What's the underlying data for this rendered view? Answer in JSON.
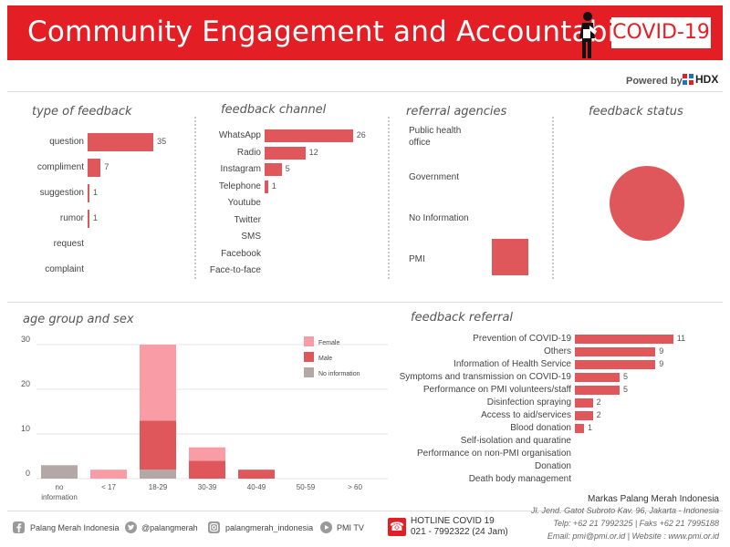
{
  "header": {
    "title": "Community Engagement and Accountability",
    "badge": "COVID-19",
    "powered_by": "Powered by",
    "hdx_label": "HDX"
  },
  "panels": {
    "type_of_feedback": "type of feedback",
    "feedback_channel": "feedback channel",
    "referral_agencies": "referral agencies",
    "feedback_status": "feedback status",
    "age_group_and_sex": "age group and sex",
    "feedback_referral": "feedback referral"
  },
  "referral_agencies": {
    "items": [
      "Public health office",
      "Government",
      "No Information",
      "PMI"
    ]
  },
  "colors": {
    "brand_red": "#e31e24",
    "bar_red": "#df575a",
    "female_pink": "#fa9ca6",
    "male_red": "#df575a",
    "no_info_gray": "#b3a8a6"
  },
  "chart_data": [
    {
      "type": "bar",
      "orientation": "horizontal",
      "categories": [
        "question",
        "compliment",
        "suggestion",
        "rumor",
        "request",
        "complaint"
      ],
      "values": [
        35,
        7,
        1,
        1,
        null,
        null
      ],
      "value_labels": [
        "35",
        "7",
        "1",
        "1",
        "",
        ""
      ]
    },
    {
      "type": "bar",
      "orientation": "horizontal",
      "categories": [
        "WhatsApp",
        "Radio",
        "Instagram",
        "Telephone",
        "Youtube",
        "Twitter",
        "SMS",
        "Facebook",
        "Face-to-face"
      ],
      "values": [
        26,
        12,
        5,
        1,
        null,
        null,
        null,
        null,
        null
      ],
      "value_labels": [
        "26",
        "12",
        "5",
        "1",
        "",
        "",
        "",
        "",
        ""
      ]
    },
    {
      "type": "pie",
      "slices": [
        {
          "value": 1
        }
      ]
    },
    {
      "type": "bar",
      "orientation": "vertical",
      "stacked": true,
      "categories": [
        "no information",
        "< 17",
        "18-29",
        "30-39",
        "40-49",
        "50-59",
        "> 60"
      ],
      "yticks": [
        "0",
        "10",
        "20",
        "30"
      ],
      "ylim": [
        0,
        30
      ],
      "series": [
        {
          "name": "Female",
          "color": "#fa9ca6",
          "values": [
            0,
            2,
            17,
            3,
            0,
            0,
            0
          ]
        },
        {
          "name": "Male",
          "color": "#df575a",
          "values": [
            0,
            0,
            11,
            4,
            2,
            0,
            0
          ]
        },
        {
          "name": "No information",
          "color": "#b3a8a6",
          "values": [
            3,
            0,
            2,
            0,
            0,
            0,
            0
          ]
        }
      ],
      "legend": "top-right"
    },
    {
      "type": "bar",
      "orientation": "horizontal",
      "categories": [
        "Prevention of COVID-19",
        "Others",
        "Information of Health Service",
        "Symptoms and transmission on COVID-19",
        "Performance on PMI volunteers/staff",
        "Disinfection spraying",
        "Access to aid/services",
        "Blood donation",
        "Self-isolation and quaratine",
        "Performance on non-PMI organisation",
        "Donation",
        "Death body management"
      ],
      "values": [
        11,
        9,
        9,
        5,
        5,
        2,
        2,
        1,
        null,
        null,
        null,
        null
      ],
      "value_labels": [
        "11",
        "9",
        "9",
        "5",
        "5",
        "2",
        "2",
        "1",
        "",
        "",
        "",
        ""
      ]
    }
  ],
  "footer": {
    "facebook": "Palang Merah Indonesia",
    "twitter": "@palangmerah",
    "instagram": "palangmerah_indonesia",
    "youtube": "PMI TV",
    "hotline_title": "HOTLINE COVID 19",
    "hotline_number": "021 - 7992322 (24 Jam)",
    "org_name": "Markas Palang Merah Indonesia",
    "address": "Jl. Jend. Gatot Subroto Kav. 96, Jakarta - Indonesia",
    "phone": "Telp: +62 21 7992325 | Faks +62 21 7995188",
    "email_line": "Email: pmi@pmi.or.id | Website : www.pmi.or.id"
  }
}
